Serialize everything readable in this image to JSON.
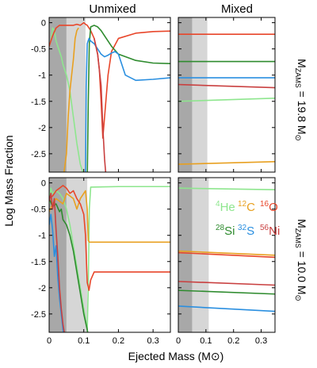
{
  "figure": {
    "col_titles": [
      "Unmixed",
      "Mixed"
    ],
    "xlabel": "Ejected Mass (M",
    "xlabel_suffix": ")",
    "ylabel": "Log Mass Fraction",
    "row_labels": [
      {
        "prefix": "M",
        "sub": "ZAMS",
        "value": " = 19.8 M"
      },
      {
        "prefix": "M",
        "sub": "ZAMS",
        "value": " = 10.0 M"
      }
    ]
  },
  "chart_data": [
    {
      "type": "line",
      "panel": "unmixed-19.8",
      "xlim": [
        0,
        0.35
      ],
      "ylim": [
        -2.85,
        0.1
      ],
      "xticks": [
        0,
        0.1,
        0.2,
        0.3
      ],
      "yticks": [
        0,
        -0.5,
        -1,
        -1.5,
        -2,
        -2.5
      ],
      "xtick_labels": [
        "0",
        "0.1",
        "0.2",
        "0.3"
      ],
      "ytick_labels": [
        "0",
        "-0.5",
        "-1",
        "-1.5",
        "-2",
        "-2.5"
      ],
      "shade_dark": [
        0,
        0.05
      ],
      "shade_light": [
        0.05,
        0.105
      ],
      "series": [
        {
          "color": "#8ee68e",
          "x": [
            0,
            0.005,
            0.01,
            0.015,
            0.02,
            0.025,
            0.03,
            0.035,
            0.04,
            0.05,
            0.06,
            0.07,
            0.08,
            0.09,
            0.1,
            0.105
          ],
          "y": [
            -0.45,
            -0.35,
            -0.1,
            -0.15,
            -0.35,
            -0.45,
            -0.55,
            -0.65,
            -0.8,
            -1.0,
            -1.3,
            -1.8,
            -2.3,
            -2.7,
            -2.9,
            -3.0
          ]
        },
        {
          "color": "#e8a020",
          "x": [
            0.04,
            0.05,
            0.055,
            0.06,
            0.065,
            0.07,
            0.075,
            0.08,
            0.085
          ],
          "y": [
            -3.0,
            -2.5,
            -1.8,
            -1.3,
            -1.0,
            -0.7,
            -0.3,
            -0.15,
            -0.1
          ]
        },
        {
          "color": "#e8462a",
          "x": [
            0.0,
            0.01,
            0.02,
            0.03,
            0.04,
            0.05,
            0.06,
            0.07,
            0.08,
            0.09,
            0.1,
            0.105,
            0.11,
            0.12,
            0.13,
            0.14,
            0.145,
            0.15,
            0.155,
            0.16,
            0.17,
            0.18,
            0.2,
            0.25,
            0.3,
            0.35
          ],
          "y": [
            -0.45,
            -0.25,
            -0.1,
            -0.05,
            -0.05,
            -0.05,
            -0.05,
            -0.05,
            -0.03,
            -0.05,
            0.0,
            -0.03,
            -0.05,
            -0.15,
            -0.3,
            -0.6,
            -0.9,
            -1.5,
            -2.2,
            -1.8,
            -1.0,
            -0.55,
            -0.3,
            -0.2,
            -0.17,
            -0.16
          ]
        },
        {
          "color": "#2e8b2e",
          "x": [
            0.11,
            0.113,
            0.116,
            0.12,
            0.13,
            0.14,
            0.15,
            0.16,
            0.18,
            0.2,
            0.25,
            0.3,
            0.35
          ],
          "y": [
            -3.0,
            -1.5,
            -0.4,
            -0.08,
            -0.05,
            -0.08,
            -0.15,
            -0.25,
            -0.45,
            -0.6,
            -0.72,
            -0.77,
            -0.78
          ]
        },
        {
          "color": "#2a8fe0",
          "x": [
            0.105,
            0.107,
            0.11,
            0.115,
            0.12,
            0.13,
            0.14,
            0.15,
            0.16,
            0.17,
            0.18,
            0.19,
            0.2,
            0.22,
            0.25,
            0.3,
            0.35
          ],
          "y": [
            -3.0,
            -1.2,
            -0.4,
            -0.3,
            -0.35,
            -0.4,
            -0.5,
            -0.6,
            -0.65,
            -0.62,
            -0.58,
            -0.55,
            -0.6,
            -1.0,
            -1.1,
            -1.08,
            -1.05
          ]
        },
        {
          "color": "#c94040",
          "x": [
            0.13,
            0.14,
            0.15,
            0.155,
            0.16,
            0.165
          ],
          "y": [
            -0.3,
            -0.6,
            -1.2,
            -2.0,
            -2.6,
            -3.0
          ]
        }
      ]
    },
    {
      "type": "line",
      "panel": "mixed-19.8",
      "xlim": [
        0,
        0.35
      ],
      "ylim": [
        -2.85,
        0.1
      ],
      "xticks": [
        0,
        0.1,
        0.2,
        0.3
      ],
      "yticks": [
        0,
        -0.5,
        -1,
        -1.5,
        -2,
        -2.5
      ],
      "xtick_labels": [
        "0",
        "0.1",
        "0.2",
        "0.3"
      ],
      "shade_dark": [
        0,
        0.05
      ],
      "shade_light": [
        0.05,
        0.105
      ],
      "series": [
        {
          "color": "#e8462a",
          "x": [
            0,
            0.35
          ],
          "y": [
            -0.22,
            -0.22
          ]
        },
        {
          "color": "#2e8b2e",
          "x": [
            0,
            0.35
          ],
          "y": [
            -0.74,
            -0.74
          ]
        },
        {
          "color": "#2a8fe0",
          "x": [
            0,
            0.35
          ],
          "y": [
            -1.05,
            -1.05
          ]
        },
        {
          "color": "#c94040",
          "x": [
            0,
            0.35
          ],
          "y": [
            -1.18,
            -1.24
          ]
        },
        {
          "color": "#8ee68e",
          "x": [
            0,
            0.35
          ],
          "y": [
            -1.5,
            -1.44
          ]
        },
        {
          "color": "#e8a020",
          "x": [
            0,
            0.35
          ],
          "y": [
            -2.7,
            -2.65
          ]
        }
      ]
    },
    {
      "type": "line",
      "panel": "unmixed-10.0",
      "xlim": [
        0,
        0.35
      ],
      "ylim": [
        -2.85,
        0.1
      ],
      "xticks": [
        0,
        0.1,
        0.2,
        0.3
      ],
      "yticks": [
        0,
        -0.5,
        -1,
        -1.5,
        -2,
        -2.5
      ],
      "xtick_labels": [
        "0",
        "0.1",
        "0.2",
        "0.3"
      ],
      "ytick_labels": [
        "0",
        "-0.5",
        "-1",
        "-1.5",
        "-2",
        "-2.5"
      ],
      "shade_dark": [
        0,
        0.05
      ],
      "shade_light": [
        0.05,
        0.11
      ],
      "series": [
        {
          "color": "#8ee68e",
          "x": [
            0,
            0.005,
            0.01,
            0.02,
            0.03,
            0.04,
            0.05,
            0.06,
            0.07,
            0.08,
            0.09,
            0.1,
            0.11,
            0.113,
            0.116,
            0.12,
            0.2,
            0.35
          ],
          "y": [
            -0.4,
            -0.1,
            -0.2,
            -0.15,
            -0.2,
            -0.3,
            -0.5,
            -0.8,
            -1.2,
            -1.6,
            -2.0,
            -2.4,
            -2.8,
            -2.0,
            -0.5,
            -0.08,
            -0.07,
            -0.07
          ]
        },
        {
          "color": "#e8a020",
          "x": [
            0,
            0.01,
            0.02,
            0.03,
            0.04,
            0.05,
            0.06,
            0.07,
            0.08,
            0.09,
            0.1,
            0.105,
            0.11,
            0.113,
            0.116,
            0.12,
            0.2,
            0.35
          ],
          "y": [
            -0.55,
            -0.4,
            -0.3,
            -0.35,
            -0.4,
            -0.2,
            -0.25,
            -0.3,
            -0.5,
            -0.3,
            -0.2,
            -0.15,
            -0.5,
            -1.1,
            -1.13,
            -1.13,
            -1.13,
            -1.13
          ]
        },
        {
          "color": "#e8462a",
          "x": [
            0,
            0.01,
            0.02,
            0.03,
            0.04,
            0.05,
            0.06,
            0.07,
            0.08,
            0.09,
            0.1,
            0.105,
            0.11,
            0.115,
            0.12,
            0.13,
            0.15,
            0.2,
            0.35
          ],
          "y": [
            -0.3,
            -0.25,
            -0.15,
            -0.1,
            -0.05,
            -0.1,
            -0.2,
            -0.15,
            -0.3,
            -0.4,
            -0.6,
            -1.0,
            -1.9,
            -2.05,
            -1.85,
            -1.7,
            -1.7,
            -1.7,
            -1.7
          ]
        },
        {
          "color": "#2e8b2e",
          "x": [
            0,
            0.01,
            0.02,
            0.03,
            0.035,
            0.04,
            0.05,
            0.06,
            0.07,
            0.08,
            0.09,
            0.1,
            0.11,
            0.115
          ],
          "y": [
            -0.3,
            -0.45,
            -0.4,
            -0.55,
            -0.5,
            -0.7,
            -0.8,
            -1.0,
            -1.3,
            -1.7,
            -2.1,
            -2.5,
            -2.8,
            -3.0
          ]
        },
        {
          "color": "#2a8fe0",
          "x": [
            0,
            0.005,
            0.01,
            0.015,
            0.02,
            0.025,
            0.03,
            0.035,
            0.04,
            0.045
          ],
          "y": [
            -0.8,
            -0.6,
            -0.9,
            -1.4,
            -1.2,
            -1.8,
            -2.2,
            -2.5,
            -2.8,
            -3.0
          ]
        },
        {
          "color": "#c94040",
          "x": [
            0,
            0.005,
            0.01,
            0.015,
            0.02,
            0.025,
            0.03,
            0.035,
            0.04,
            0.045,
            0.05
          ],
          "y": [
            -0.35,
            -0.2,
            -0.5,
            -0.3,
            -0.9,
            -1.4,
            -2.0,
            -2.4,
            -2.7,
            -2.9,
            -3.0
          ]
        }
      ]
    },
    {
      "type": "line",
      "panel": "mixed-10.0",
      "xlim": [
        0,
        0.35
      ],
      "ylim": [
        -2.85,
        0.1
      ],
      "xticks": [
        0,
        0.1,
        0.2,
        0.3
      ],
      "yticks": [
        0,
        -0.5,
        -1,
        -1.5,
        -2,
        -2.5
      ],
      "xtick_labels": [
        "0",
        "0.1",
        "0.2",
        "0.3"
      ],
      "shade_dark": [
        0,
        0.05
      ],
      "shade_light": [
        0.05,
        0.11
      ],
      "legend": [
        {
          "sup": "4",
          "el": "He",
          "color": "#8ee68e"
        },
        {
          "sup": "12",
          "el": "C",
          "color": "#e8a020"
        },
        {
          "sup": "16",
          "el": "O",
          "color": "#e8462a"
        },
        {
          "sup": "28",
          "el": "Si",
          "color": "#2e8b2e"
        },
        {
          "sup": "32",
          "el": "S",
          "color": "#2a8fe0"
        },
        {
          "sup": "56",
          "el": "Ni",
          "color": "#c94040"
        }
      ],
      "series": [
        {
          "color": "#8ee68e",
          "x": [
            0,
            0.35
          ],
          "y": [
            -0.1,
            -0.13
          ]
        },
        {
          "color": "#e8a020",
          "x": [
            0,
            0.35
          ],
          "y": [
            -1.3,
            -1.38
          ]
        },
        {
          "color": "#e8462a",
          "x": [
            0,
            0.35
          ],
          "y": [
            -1.33,
            -1.42
          ]
        },
        {
          "color": "#c94040",
          "x": [
            0,
            0.35
          ],
          "y": [
            -1.88,
            -1.95
          ]
        },
        {
          "color": "#2e8b2e",
          "x": [
            0,
            0.35
          ],
          "y": [
            -2.05,
            -2.12
          ]
        },
        {
          "color": "#2a8fe0",
          "x": [
            0,
            0.35
          ],
          "y": [
            -2.35,
            -2.45
          ]
        }
      ]
    }
  ]
}
